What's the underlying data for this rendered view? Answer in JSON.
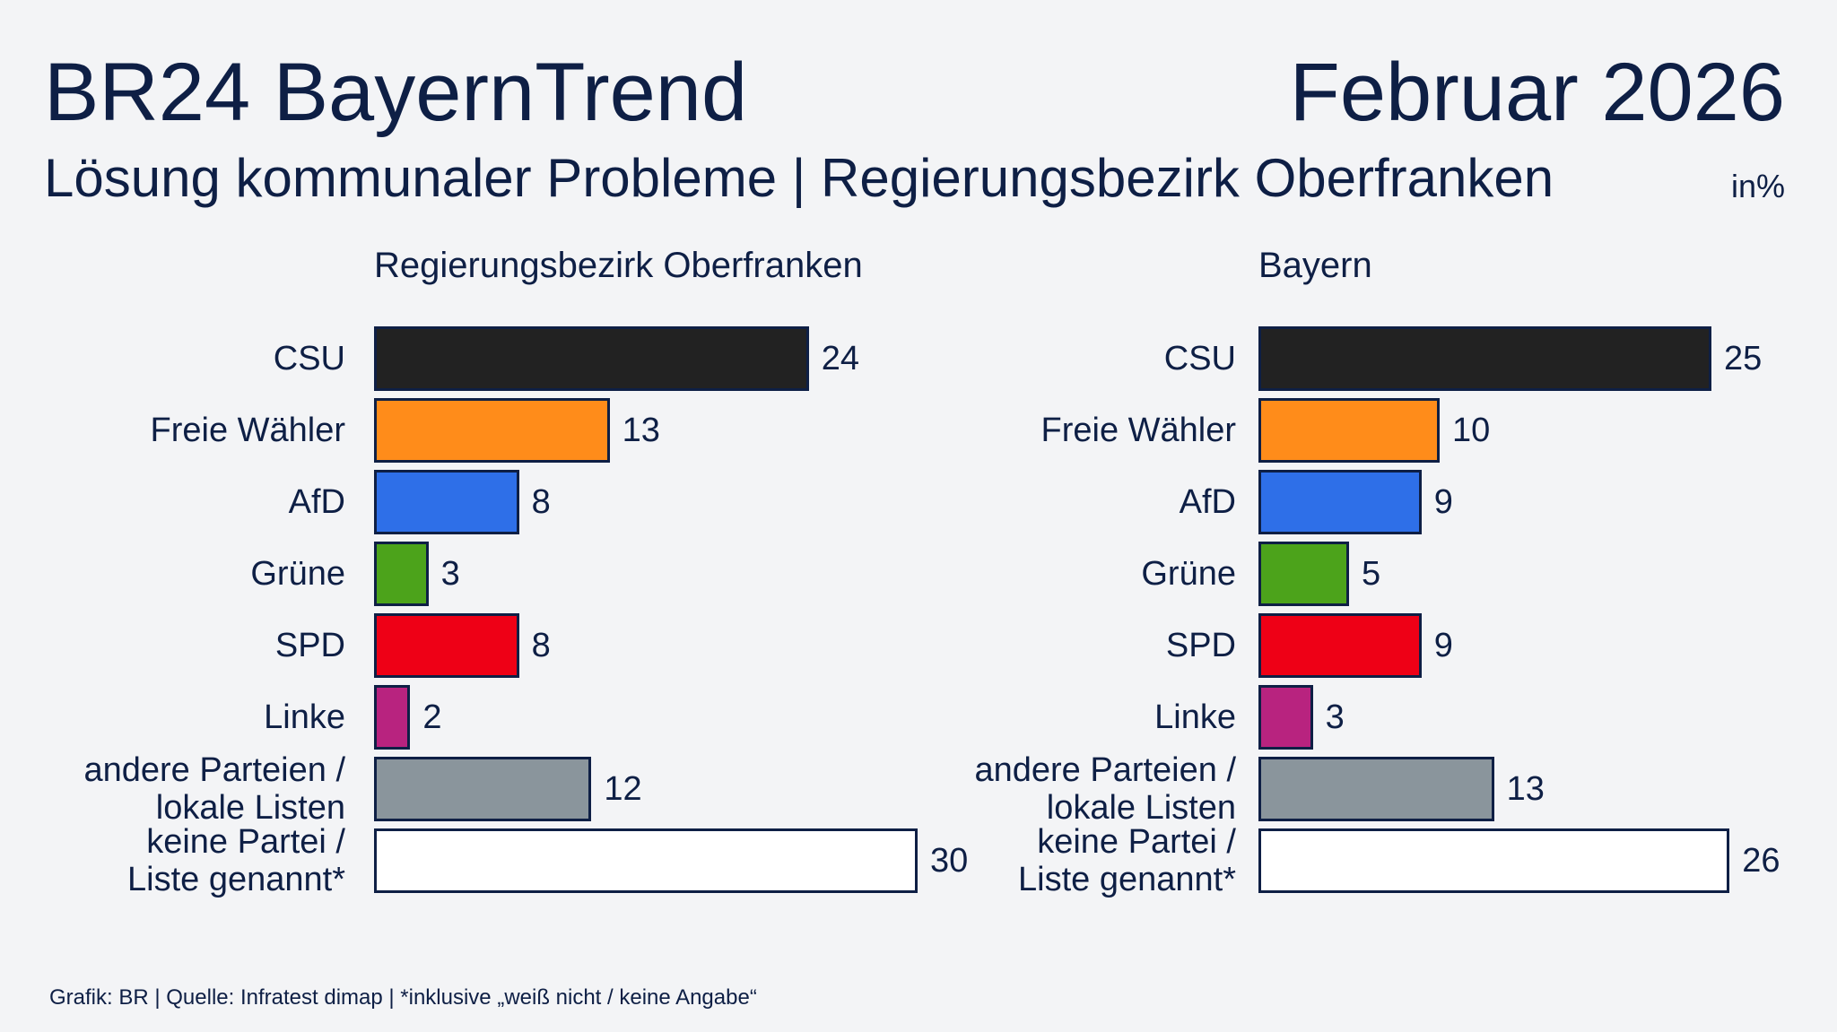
{
  "header": {
    "title": "BR24 BayernTrend",
    "date": "Februar 2026",
    "subtitle": "Lösung kommunaler Probleme | Regierungsbezirk Oberfranken",
    "unit": "in%"
  },
  "chart_data": [
    {
      "type": "bar",
      "orientation": "horizontal",
      "title": "Regierungsbezirk Oberfranken",
      "categories": [
        "CSU",
        "Freie Wähler",
        "AfD",
        "Grüne",
        "SPD",
        "Linke",
        "andere Parteien /\nlokale Listen",
        "keine Partei /\nListe genannt*"
      ],
      "values": [
        24,
        13,
        8,
        3,
        8,
        2,
        12,
        30
      ],
      "colors": [
        "#222222",
        "#ff8c1a",
        "#2e6fe8",
        "#4ca31b",
        "#ee0016",
        "#b8237f",
        "#8a959c",
        "#ffffff"
      ]
    },
    {
      "type": "bar",
      "orientation": "horizontal",
      "title": "Bayern",
      "categories": [
        "CSU",
        "Freie Wähler",
        "AfD",
        "Grüne",
        "SPD",
        "Linke",
        "andere Parteien /\nlokale Listen",
        "keine Partei /\nListe genannt*"
      ],
      "values": [
        25,
        10,
        9,
        5,
        9,
        3,
        13,
        26
      ],
      "colors": [
        "#222222",
        "#ff8c1a",
        "#2e6fe8",
        "#4ca31b",
        "#ee0016",
        "#b8237f",
        "#8a959c",
        "#ffffff"
      ]
    }
  ],
  "footer": "Grafik: BR | Quelle: Infratest dimap | *inklusive „weiß nicht / keine Angabe“"
}
